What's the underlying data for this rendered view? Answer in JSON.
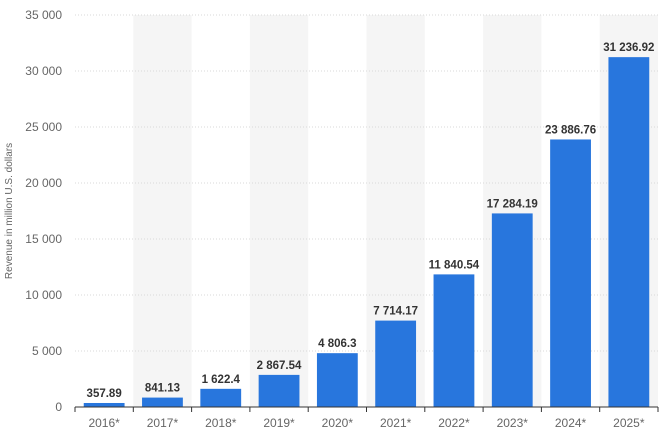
{
  "chart_data": {
    "type": "bar",
    "title": "",
    "xlabel": "",
    "ylabel": "Revenue in million U.S. dollars",
    "categories": [
      "2016*",
      "2017*",
      "2018*",
      "2019*",
      "2020*",
      "2021*",
      "2022*",
      "2023*",
      "2024*",
      "2025*"
    ],
    "values": [
      357.89,
      841.13,
      1622.4,
      2867.54,
      4806.3,
      7714.17,
      11840.54,
      17284.19,
      23886.76,
      31236.92
    ],
    "value_labels": [
      "357.89",
      "841.13",
      "1 622.4",
      "2 867.54",
      "4 806.3",
      "7 714.17",
      "11 840.54",
      "17 284.19",
      "23 886.76",
      "31 236.92"
    ],
    "ylim": [
      0,
      35000
    ],
    "yticks": [
      0,
      5000,
      10000,
      15000,
      20000,
      25000,
      30000,
      35000
    ],
    "ytick_labels": [
      "0",
      "5 000",
      "10 000",
      "15 000",
      "20 000",
      "25 000",
      "30 000",
      "35 000"
    ],
    "grid": true,
    "legend": false,
    "colors": {
      "bar": "#2876dd",
      "band": "#f5f5f5",
      "grid": "#d9d9d9",
      "axis": "#333333"
    }
  }
}
